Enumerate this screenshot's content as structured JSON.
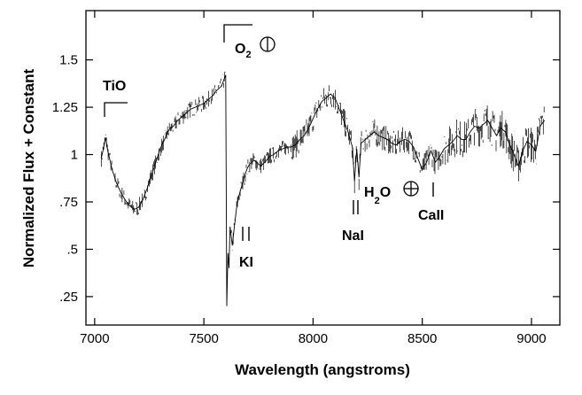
{
  "chart_data": {
    "type": "line",
    "xlabel": "Wavelength (angstroms)",
    "ylabel": "Normalized Flux + Constant",
    "xlim": [
      6960,
      9130
    ],
    "ylim": [
      0.1,
      1.76
    ],
    "xticks": [
      7000,
      7500,
      8000,
      8500,
      9000
    ],
    "xtick_labels": [
      "7000",
      "7500",
      "8000",
      "8500",
      "9000"
    ],
    "yticks": [
      0.25,
      0.5,
      0.75,
      1.0,
      1.25,
      1.5
    ],
    "ytick_labels": [
      ".25",
      ".5",
      ".75",
      "1",
      "1.25",
      "1.5"
    ],
    "grid": false,
    "series": [
      {
        "x": [
          7030,
          7040,
          7050,
          7060,
          7080,
          7100,
          7120,
          7140,
          7160,
          7180,
          7200,
          7220,
          7240,
          7260,
          7280,
          7300,
          7320,
          7340,
          7360,
          7380,
          7400,
          7420,
          7440,
          7460,
          7480,
          7500,
          7520,
          7540,
          7560,
          7580,
          7600,
          7605,
          7610,
          7615,
          7620,
          7630,
          7640,
          7650,
          7660,
          7670,
          7680,
          7690,
          7700,
          7710,
          7720,
          7730,
          7740,
          7750,
          7760,
          7780,
          7800,
          7820,
          7840,
          7860,
          7880,
          7900,
          7920,
          7940,
          7960,
          7980,
          8000,
          8020,
          8040,
          8060,
          8080,
          8100,
          8120,
          8140,
          8160,
          8180,
          8190,
          8200,
          8210,
          8220,
          8240,
          8260,
          8280,
          8300,
          8320,
          8340,
          8360,
          8380,
          8400,
          8420,
          8440,
          8460,
          8480,
          8500,
          8520,
          8540,
          8560,
          8580,
          8600,
          8620,
          8640,
          8660,
          8680,
          8700,
          8720,
          8740,
          8760,
          8780,
          8800,
          8820,
          8840,
          8860,
          8880,
          8900,
          8920,
          8940,
          8960,
          8980,
          9000,
          9020,
          9040,
          9060
        ],
        "y": [
          0.98,
          1.03,
          1.09,
          1.02,
          0.92,
          0.85,
          0.8,
          0.76,
          0.73,
          0.71,
          0.72,
          0.76,
          0.82,
          0.89,
          0.96,
          1.03,
          1.08,
          1.13,
          1.15,
          1.18,
          1.2,
          1.22,
          1.24,
          1.25,
          1.26,
          1.27,
          1.29,
          1.31,
          1.34,
          1.36,
          1.42,
          0.2,
          0.48,
          0.4,
          0.62,
          0.52,
          0.62,
          0.72,
          0.78,
          0.82,
          0.86,
          0.9,
          0.93,
          0.95,
          0.96,
          0.97,
          0.96,
          0.95,
          0.94,
          0.96,
          0.99,
          1.0,
          1.02,
          1.03,
          1.04,
          1.04,
          1.05,
          1.08,
          1.1,
          1.14,
          1.19,
          1.24,
          1.28,
          1.3,
          1.32,
          1.3,
          1.24,
          1.18,
          1.12,
          1.04,
          0.86,
          1.03,
          0.88,
          1.06,
          1.08,
          1.1,
          1.12,
          1.1,
          1.09,
          1.08,
          1.06,
          1.05,
          1.07,
          1.08,
          1.07,
          1.04,
          0.98,
          0.92,
          0.96,
          1.02,
          0.96,
          0.99,
          1.03,
          1.05,
          1.07,
          1.1,
          1.08,
          1.08,
          1.12,
          1.15,
          1.14,
          1.16,
          1.18,
          1.14,
          1.1,
          1.14,
          1.12,
          1.05,
          1.0,
          0.94,
          1.02,
          1.07,
          1.05,
          1.02,
          1.15,
          1.18
        ]
      }
    ],
    "annotations": {
      "tio": "TiO",
      "o2_main": "O",
      "o2_sub": "2",
      "ki": "KI",
      "nai": "NaI",
      "h2o_main": "H",
      "h2o_sub": "2",
      "h2o_end": "O",
      "caii": "CaII"
    }
  }
}
